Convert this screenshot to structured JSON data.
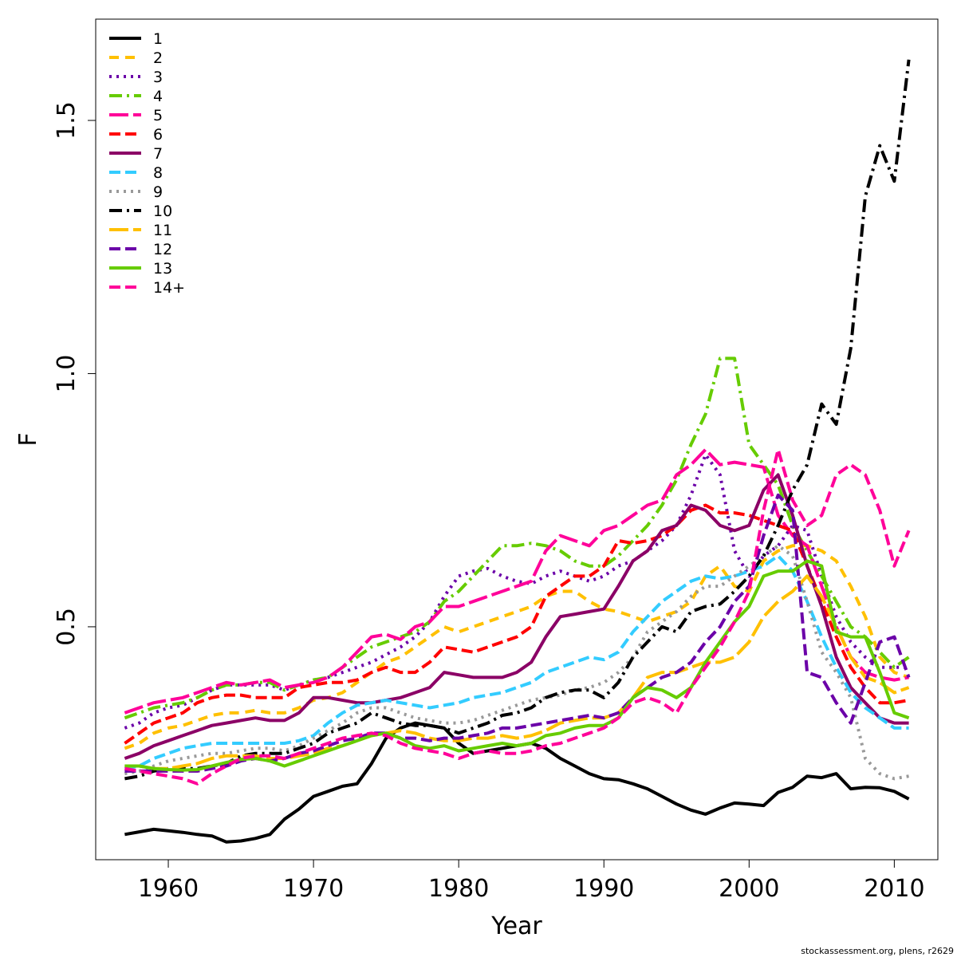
{
  "chart_data": {
    "type": "line",
    "xlabel": "Year",
    "ylabel": "F",
    "xlim": [
      1955,
      2013
    ],
    "ylim": [
      0.04,
      1.7
    ],
    "x_ticks": [
      1960,
      1970,
      1980,
      1990,
      2000,
      2010
    ],
    "y_ticks": [
      0.5,
      1.0,
      1.5
    ],
    "y_tick_labels": [
      "0.5",
      "1.0",
      "1.5"
    ],
    "legend_position": "top-left",
    "x": [
      1957,
      1958,
      1959,
      1960,
      1961,
      1962,
      1963,
      1964,
      1965,
      1966,
      1967,
      1968,
      1969,
      1970,
      1971,
      1972,
      1973,
      1974,
      1975,
      1976,
      1977,
      1978,
      1979,
      1980,
      1981,
      1982,
      1983,
      1984,
      1985,
      1986,
      1987,
      1988,
      1989,
      1990,
      1991,
      1992,
      1993,
      1994,
      1995,
      1996,
      1997,
      1998,
      1999,
      2000,
      2001,
      2002,
      2003,
      2004,
      2005,
      2006,
      2007,
      2008,
      2009,
      2010,
      2011
    ],
    "series": [
      {
        "name": "1",
        "color": "#000000",
        "dash": "solid",
        "values": [
          0.09,
          0.095,
          0.1,
          0.097,
          0.094,
          0.09,
          0.087,
          0.075,
          0.077,
          0.082,
          0.09,
          0.12,
          0.14,
          0.165,
          0.175,
          0.185,
          0.19,
          0.23,
          0.28,
          0.3,
          0.31,
          0.305,
          0.3,
          0.27,
          0.25,
          0.255,
          0.26,
          0.265,
          0.27,
          0.26,
          0.24,
          0.225,
          0.21,
          0.2,
          0.198,
          0.19,
          0.18,
          0.165,
          0.15,
          0.138,
          0.13,
          0.142,
          0.152,
          0.15,
          0.147,
          0.173,
          0.183,
          0.205,
          0.202,
          0.21,
          0.18,
          0.183,
          0.182,
          0.175,
          0.16
        ]
      },
      {
        "name": "2",
        "color": "#ffc000",
        "dash": "12,8",
        "values": [
          0.26,
          0.27,
          0.29,
          0.3,
          0.305,
          0.315,
          0.325,
          0.33,
          0.33,
          0.335,
          0.33,
          0.33,
          0.34,
          0.355,
          0.36,
          0.37,
          0.39,
          0.41,
          0.43,
          0.44,
          0.46,
          0.48,
          0.5,
          0.49,
          0.5,
          0.51,
          0.52,
          0.53,
          0.54,
          0.56,
          0.57,
          0.57,
          0.55,
          0.535,
          0.53,
          0.52,
          0.51,
          0.52,
          0.53,
          0.55,
          0.6,
          0.62,
          0.58,
          0.57,
          0.63,
          0.65,
          0.66,
          0.66,
          0.65,
          0.63,
          0.58,
          0.52,
          0.44,
          0.41,
          0.4
        ]
      },
      {
        "name": "3",
        "color": "#6b00a8",
        "dash": "3,6",
        "values": [
          0.3,
          0.31,
          0.33,
          0.34,
          0.345,
          0.36,
          0.375,
          0.385,
          0.385,
          0.385,
          0.385,
          0.375,
          0.385,
          0.395,
          0.4,
          0.41,
          0.42,
          0.43,
          0.445,
          0.46,
          0.48,
          0.51,
          0.56,
          0.6,
          0.61,
          0.615,
          0.6,
          0.59,
          0.585,
          0.6,
          0.61,
          0.6,
          0.59,
          0.6,
          0.62,
          0.63,
          0.65,
          0.67,
          0.7,
          0.76,
          0.84,
          0.8,
          0.65,
          0.6,
          0.64,
          0.66,
          0.7,
          0.69,
          0.6,
          0.52,
          0.47,
          0.44,
          0.42,
          0.42,
          0.42
        ]
      },
      {
        "name": "4",
        "color": "#66cc00",
        "dash": "16,6,3,6",
        "values": [
          0.32,
          0.33,
          0.34,
          0.345,
          0.35,
          0.36,
          0.375,
          0.385,
          0.385,
          0.39,
          0.39,
          0.375,
          0.385,
          0.395,
          0.4,
          0.42,
          0.44,
          0.46,
          0.47,
          0.48,
          0.49,
          0.51,
          0.55,
          0.57,
          0.6,
          0.63,
          0.66,
          0.66,
          0.665,
          0.66,
          0.65,
          0.63,
          0.62,
          0.62,
          0.64,
          0.67,
          0.7,
          0.74,
          0.79,
          0.86,
          0.92,
          1.03,
          1.03,
          0.86,
          0.82,
          0.78,
          0.7,
          0.65,
          0.6,
          0.55,
          0.5,
          0.48,
          0.45,
          0.42,
          0.44
        ]
      },
      {
        "name": "5",
        "color": "#ff0099",
        "dash": "24,6",
        "values": [
          0.33,
          0.34,
          0.35,
          0.355,
          0.36,
          0.37,
          0.38,
          0.39,
          0.385,
          0.39,
          0.395,
          0.38,
          0.385,
          0.39,
          0.4,
          0.42,
          0.45,
          0.48,
          0.485,
          0.475,
          0.5,
          0.51,
          0.54,
          0.54,
          0.55,
          0.56,
          0.57,
          0.58,
          0.59,
          0.65,
          0.68,
          0.67,
          0.66,
          0.69,
          0.7,
          0.72,
          0.74,
          0.75,
          0.8,
          0.82,
          0.85,
          0.82,
          0.825,
          0.82,
          0.815,
          0.72,
          0.68,
          0.66,
          0.58,
          0.5,
          0.44,
          0.41,
          0.4,
          0.395,
          0.4
        ]
      },
      {
        "name": "6",
        "color": "#ff0000",
        "dash": "14,6",
        "values": [
          0.27,
          0.29,
          0.31,
          0.32,
          0.33,
          0.35,
          0.36,
          0.365,
          0.365,
          0.36,
          0.36,
          0.36,
          0.38,
          0.385,
          0.39,
          0.39,
          0.395,
          0.41,
          0.42,
          0.41,
          0.41,
          0.43,
          0.46,
          0.455,
          0.45,
          0.46,
          0.47,
          0.48,
          0.5,
          0.56,
          0.58,
          0.6,
          0.6,
          0.62,
          0.67,
          0.665,
          0.67,
          0.68,
          0.7,
          0.73,
          0.74,
          0.725,
          0.725,
          0.72,
          0.71,
          0.7,
          0.69,
          0.62,
          0.55,
          0.48,
          0.42,
          0.38,
          0.35,
          0.35,
          0.355
        ]
      },
      {
        "name": "7",
        "color": "#8b0066",
        "dash": "solid",
        "values": [
          0.24,
          0.25,
          0.265,
          0.275,
          0.285,
          0.295,
          0.305,
          0.31,
          0.315,
          0.32,
          0.315,
          0.315,
          0.33,
          0.36,
          0.36,
          0.355,
          0.35,
          0.35,
          0.355,
          0.36,
          0.37,
          0.38,
          0.41,
          0.405,
          0.4,
          0.4,
          0.4,
          0.41,
          0.43,
          0.48,
          0.52,
          0.525,
          0.53,
          0.535,
          0.58,
          0.63,
          0.65,
          0.69,
          0.7,
          0.74,
          0.73,
          0.7,
          0.69,
          0.7,
          0.77,
          0.8,
          0.72,
          0.62,
          0.54,
          0.44,
          0.38,
          0.35,
          0.32,
          0.31,
          0.31
        ]
      },
      {
        "name": "8",
        "color": "#33ccff",
        "dash": "14,6",
        "values": [
          0.22,
          0.225,
          0.24,
          0.25,
          0.26,
          0.265,
          0.27,
          0.27,
          0.27,
          0.27,
          0.27,
          0.27,
          0.275,
          0.285,
          0.31,
          0.33,
          0.345,
          0.35,
          0.355,
          0.35,
          0.345,
          0.34,
          0.345,
          0.35,
          0.36,
          0.365,
          0.37,
          0.38,
          0.39,
          0.41,
          0.42,
          0.43,
          0.44,
          0.435,
          0.45,
          0.49,
          0.52,
          0.55,
          0.57,
          0.59,
          0.6,
          0.595,
          0.6,
          0.61,
          0.62,
          0.64,
          0.61,
          0.55,
          0.48,
          0.42,
          0.37,
          0.34,
          0.32,
          0.3,
          0.3
        ]
      },
      {
        "name": "9",
        "color": "#999999",
        "dash": "3,6",
        "values": [
          0.21,
          0.215,
          0.225,
          0.235,
          0.24,
          0.245,
          0.25,
          0.25,
          0.255,
          0.26,
          0.26,
          0.255,
          0.265,
          0.28,
          0.295,
          0.31,
          0.33,
          0.34,
          0.34,
          0.33,
          0.32,
          0.315,
          0.31,
          0.31,
          0.315,
          0.325,
          0.335,
          0.345,
          0.355,
          0.36,
          0.365,
          0.375,
          0.38,
          0.39,
          0.41,
          0.44,
          0.49,
          0.51,
          0.53,
          0.56,
          0.58,
          0.58,
          0.6,
          0.62,
          0.64,
          0.66,
          0.64,
          0.55,
          0.45,
          0.41,
          0.36,
          0.24,
          0.21,
          0.2,
          0.205
        ]
      },
      {
        "name": "10",
        "color": "#000000",
        "dash": "16,6,3,6",
        "values": [
          0.2,
          0.205,
          0.215,
          0.22,
          0.22,
          0.22,
          0.225,
          0.23,
          0.245,
          0.25,
          0.25,
          0.25,
          0.26,
          0.27,
          0.29,
          0.3,
          0.31,
          0.33,
          0.32,
          0.31,
          0.305,
          0.305,
          0.3,
          0.29,
          0.3,
          0.31,
          0.325,
          0.33,
          0.34,
          0.36,
          0.37,
          0.375,
          0.375,
          0.36,
          0.39,
          0.44,
          0.47,
          0.5,
          0.49,
          0.53,
          0.54,
          0.545,
          0.57,
          0.6,
          0.64,
          0.7,
          0.77,
          0.82,
          0.94,
          0.9,
          1.05,
          1.35,
          1.45,
          1.38,
          1.62
        ]
      },
      {
        "name": "11",
        "color": "#ffc000",
        "dash": "24,6",
        "values": [
          0.225,
          0.225,
          0.22,
          0.22,
          0.225,
          0.23,
          0.24,
          0.245,
          0.245,
          0.245,
          0.24,
          0.24,
          0.245,
          0.25,
          0.26,
          0.265,
          0.275,
          0.285,
          0.29,
          0.295,
          0.29,
          0.28,
          0.275,
          0.275,
          0.28,
          0.28,
          0.285,
          0.28,
          0.285,
          0.295,
          0.31,
          0.315,
          0.32,
          0.32,
          0.33,
          0.36,
          0.4,
          0.41,
          0.41,
          0.42,
          0.43,
          0.43,
          0.44,
          0.47,
          0.52,
          0.55,
          0.57,
          0.6,
          0.56,
          0.5,
          0.44,
          0.4,
          0.39,
          0.37,
          0.38
        ]
      },
      {
        "name": "12",
        "color": "#6b00a8",
        "dash": "14,6",
        "values": [
          0.215,
          0.215,
          0.215,
          0.215,
          0.215,
          0.215,
          0.22,
          0.225,
          0.235,
          0.24,
          0.235,
          0.24,
          0.25,
          0.255,
          0.265,
          0.275,
          0.28,
          0.29,
          0.29,
          0.28,
          0.28,
          0.275,
          0.28,
          0.28,
          0.285,
          0.29,
          0.3,
          0.3,
          0.305,
          0.31,
          0.315,
          0.32,
          0.325,
          0.32,
          0.33,
          0.36,
          0.38,
          0.4,
          0.41,
          0.43,
          0.47,
          0.5,
          0.55,
          0.58,
          0.68,
          0.76,
          0.73,
          0.41,
          0.4,
          0.35,
          0.31,
          0.39,
          0.47,
          0.48,
          0.4
        ]
      },
      {
        "name": "13",
        "color": "#66cc00",
        "dash": "solid",
        "values": [
          0.225,
          0.225,
          0.22,
          0.218,
          0.217,
          0.218,
          0.225,
          0.232,
          0.238,
          0.24,
          0.235,
          0.225,
          0.235,
          0.245,
          0.255,
          0.265,
          0.275,
          0.285,
          0.29,
          0.28,
          0.265,
          0.26,
          0.265,
          0.255,
          0.26,
          0.265,
          0.27,
          0.265,
          0.27,
          0.285,
          0.29,
          0.3,
          0.305,
          0.305,
          0.32,
          0.36,
          0.38,
          0.375,
          0.36,
          0.38,
          0.43,
          0.47,
          0.51,
          0.54,
          0.6,
          0.61,
          0.61,
          0.63,
          0.62,
          0.49,
          0.48,
          0.48,
          0.41,
          0.33,
          0.32
        ]
      },
      {
        "name": "14+",
        "color": "#ff0099",
        "dash": "14,6",
        "values": [
          0.22,
          0.215,
          0.21,
          0.205,
          0.2,
          0.19,
          0.21,
          0.225,
          0.24,
          0.245,
          0.245,
          0.24,
          0.25,
          0.26,
          0.27,
          0.28,
          0.285,
          0.29,
          0.285,
          0.27,
          0.26,
          0.255,
          0.25,
          0.24,
          0.25,
          0.255,
          0.25,
          0.25,
          0.255,
          0.265,
          0.27,
          0.28,
          0.29,
          0.3,
          0.32,
          0.35,
          0.36,
          0.35,
          0.33,
          0.38,
          0.42,
          0.46,
          0.51,
          0.57,
          0.73,
          0.85,
          0.75,
          0.7,
          0.72,
          0.8,
          0.82,
          0.8,
          0.73,
          0.62,
          0.69
        ]
      }
    ]
  },
  "credit": "stockassessment.org, plens, r2629"
}
